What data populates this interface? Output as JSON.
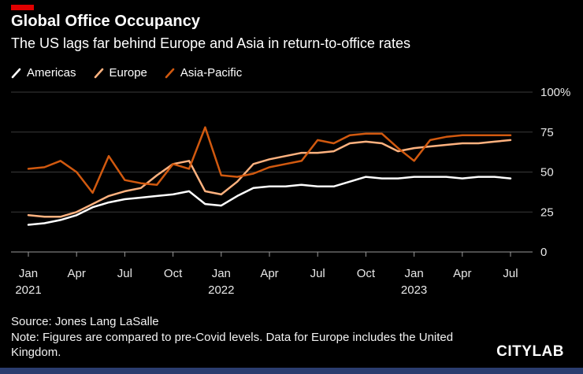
{
  "header": {
    "title": "Global Office Occupancy",
    "subtitle": "The US lags far behind Europe and Asia in return-to-office rates"
  },
  "chart_data": {
    "type": "line",
    "title": "Global Office Occupancy",
    "unit": "%",
    "ylim": [
      0,
      100
    ],
    "grid": "horizontal",
    "legend_position": "top-left",
    "x": [
      "Jan 2021",
      "Feb 2021",
      "Mar 2021",
      "Apr 2021",
      "May 2021",
      "Jun 2021",
      "Jul 2021",
      "Aug 2021",
      "Sep 2021",
      "Oct 2021",
      "Nov 2021",
      "Dec 2021",
      "Jan 2022",
      "Feb 2022",
      "Mar 2022",
      "Apr 2022",
      "May 2022",
      "Jun 2022",
      "Jul 2022",
      "Aug 2022",
      "Sep 2022",
      "Oct 2022",
      "Nov 2022",
      "Dec 2022",
      "Jan 2023",
      "Feb 2023",
      "Mar 2023",
      "Apr 2023",
      "May 2023",
      "Jun 2023",
      "Jul 2023"
    ],
    "x_ticks": [
      {
        "index": 0,
        "label": "Jan",
        "year": "2021"
      },
      {
        "index": 3,
        "label": "Apr"
      },
      {
        "index": 6,
        "label": "Jul"
      },
      {
        "index": 9,
        "label": "Oct"
      },
      {
        "index": 12,
        "label": "Jan",
        "year": "2022"
      },
      {
        "index": 15,
        "label": "Apr"
      },
      {
        "index": 18,
        "label": "Jul"
      },
      {
        "index": 21,
        "label": "Oct"
      },
      {
        "index": 24,
        "label": "Jan",
        "year": "2023"
      },
      {
        "index": 27,
        "label": "Apr"
      },
      {
        "index": 30,
        "label": "Jul"
      }
    ],
    "y_ticks": [
      {
        "value": 100,
        "label": "100%"
      },
      {
        "value": 75,
        "label": "75"
      },
      {
        "value": 50,
        "label": "50"
      },
      {
        "value": 25,
        "label": "25"
      },
      {
        "value": 0,
        "label": "0"
      }
    ],
    "series": [
      {
        "name": "Americas",
        "color": "#ffffff",
        "values": [
          17,
          18,
          20,
          23,
          28,
          31,
          33,
          34,
          35,
          36,
          38,
          30,
          29,
          35,
          40,
          41,
          41,
          42,
          41,
          41,
          44,
          47,
          46,
          46,
          47,
          47,
          47,
          46,
          47,
          47,
          46
        ]
      },
      {
        "name": "Europe",
        "color": "#ffb27f",
        "values": [
          23,
          22,
          22,
          25,
          30,
          35,
          38,
          40,
          48,
          55,
          57,
          38,
          36,
          44,
          55,
          58,
          60,
          62,
          62,
          63,
          68,
          69,
          68,
          63,
          65,
          66,
          67,
          68,
          68,
          69,
          70
        ]
      },
      {
        "name": "Asia-Pacific",
        "color": "#d1590f",
        "values": [
          52,
          53,
          57,
          50,
          37,
          60,
          45,
          43,
          42,
          55,
          52,
          78,
          48,
          47,
          49,
          53,
          55,
          57,
          70,
          68,
          73,
          74,
          74,
          65,
          57,
          70,
          72,
          73,
          73,
          73,
          73
        ]
      }
    ]
  },
  "footer": {
    "source": "Source: Jones Lang LaSalle",
    "note": "Note: Figures are compared to pre-Covid levels. Data for Europe includes the United Kingdom.",
    "brand": "CITYLAB"
  },
  "colors": {
    "accent_red": "#e10000",
    "footer_bar": "#2b3d6f",
    "grid": "#3a3a3a",
    "axis": "#9a9a9a",
    "label": "#e8e8e8"
  }
}
